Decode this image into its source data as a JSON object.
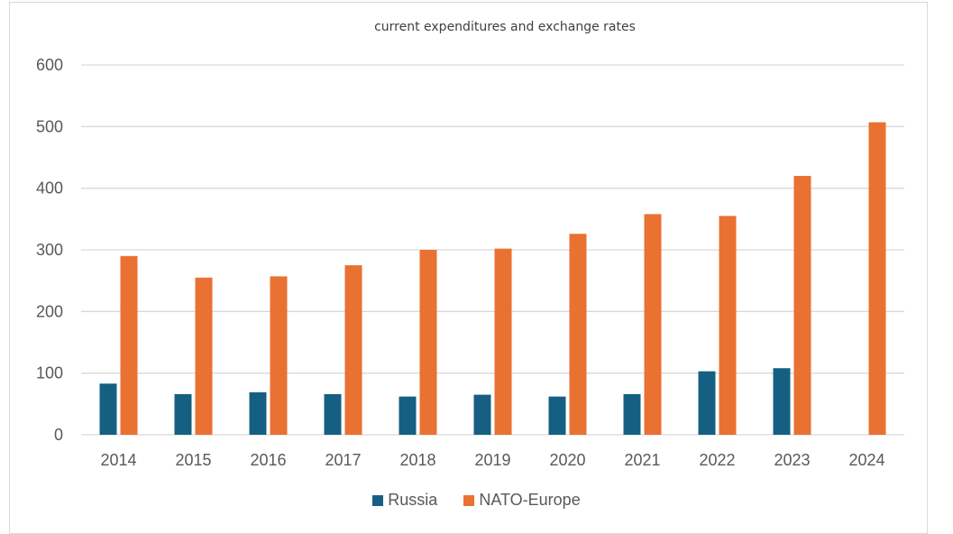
{
  "chart_data": {
    "type": "bar",
    "title": "current expenditures and exchange rates",
    "xlabel": "",
    "ylabel": "",
    "ylim": [
      0,
      600
    ],
    "yticks": [
      0,
      100,
      200,
      300,
      400,
      500,
      600
    ],
    "grid": true,
    "legend_position": "bottom",
    "categories": [
      "2014",
      "2015",
      "2016",
      "2017",
      "2018",
      "2019",
      "2020",
      "2021",
      "2022",
      "2023",
      "2024"
    ],
    "series": [
      {
        "name": "Russia",
        "color": "#156082",
        "values": [
          83,
          66,
          69,
          66,
          62,
          65,
          62,
          66,
          103,
          108,
          null
        ]
      },
      {
        "name": "NATO-Europe",
        "color": "#e97132",
        "values": [
          290,
          255,
          257,
          275,
          300,
          302,
          326,
          358,
          355,
          420,
          507
        ]
      }
    ]
  }
}
